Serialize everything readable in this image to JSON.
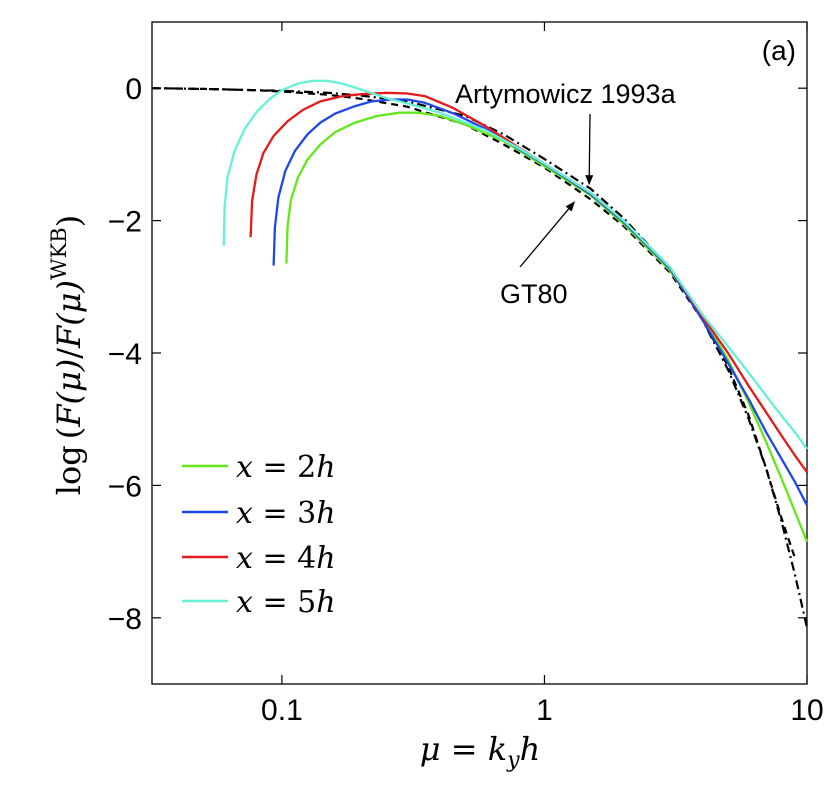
{
  "chart_data": {
    "type": "line",
    "panel_label": "(a)",
    "xscale": "log",
    "xlim": [
      0.032,
      10
    ],
    "ylim": [
      -9,
      1
    ],
    "xlabel": "μ = k_y h",
    "ylabel": "log (F(μ)/F(μ)^WKB)",
    "xlabel_parts": {
      "mu": "μ",
      "eq": " = ",
      "k": "k",
      "sub": "y",
      "h": "h"
    },
    "ylabel_parts": {
      "log": "log",
      "open": "(",
      "F1": "F",
      "mu1": "(μ)",
      "slash": "/",
      "F2": "F",
      "mu2": "(μ)",
      "sup": "WKB",
      "close": ")"
    },
    "x_ticks": [
      {
        "value": 0.1,
        "label": "0.1"
      },
      {
        "value": 1,
        "label": "1"
      },
      {
        "value": 10,
        "label": "10"
      }
    ],
    "y_ticks": [
      {
        "value": 0,
        "label": "0"
      },
      {
        "value": -2,
        "label": "−2"
      },
      {
        "value": -4,
        "label": "−4"
      },
      {
        "value": -6,
        "label": "−6"
      },
      {
        "value": -8,
        "label": "−8"
      }
    ],
    "legend_position": "lower-left",
    "series": [
      {
        "name": "x = 2h",
        "math": {
          "x": "x",
          "eq": " = 2",
          "h": "h"
        },
        "color": "#66e61a",
        "style": "solid",
        "points": [
          [
            0.104,
            -2.65
          ],
          [
            0.105,
            -2.1
          ],
          [
            0.108,
            -1.7
          ],
          [
            0.115,
            -1.35
          ],
          [
            0.125,
            -1.08
          ],
          [
            0.14,
            -0.85
          ],
          [
            0.16,
            -0.66
          ],
          [
            0.19,
            -0.52
          ],
          [
            0.23,
            -0.42
          ],
          [
            0.28,
            -0.37
          ],
          [
            0.33,
            -0.37
          ],
          [
            0.4,
            -0.42
          ],
          [
            0.5,
            -0.55
          ],
          [
            0.7,
            -0.8
          ],
          [
            1.0,
            -1.18
          ],
          [
            1.5,
            -1.62
          ],
          [
            2.0,
            -2.05
          ],
          [
            3.0,
            -2.75
          ],
          [
            4.0,
            -3.45
          ],
          [
            5.0,
            -4.1
          ],
          [
            6.0,
            -4.75
          ],
          [
            7.0,
            -5.35
          ],
          [
            8.0,
            -5.9
          ],
          [
            9.0,
            -6.4
          ],
          [
            10.0,
            -6.85
          ]
        ]
      },
      {
        "name": "x = 3h",
        "math": {
          "x": "x",
          "eq": " = 3",
          "h": "h"
        },
        "color": "#2148e6",
        "style": "solid",
        "points": [
          [
            0.093,
            -2.68
          ],
          [
            0.094,
            -2.1
          ],
          [
            0.097,
            -1.65
          ],
          [
            0.103,
            -1.25
          ],
          [
            0.112,
            -0.95
          ],
          [
            0.125,
            -0.7
          ],
          [
            0.14,
            -0.52
          ],
          [
            0.16,
            -0.38
          ],
          [
            0.19,
            -0.27
          ],
          [
            0.22,
            -0.2
          ],
          [
            0.26,
            -0.17
          ],
          [
            0.3,
            -0.17
          ],
          [
            0.35,
            -0.22
          ],
          [
            0.45,
            -0.38
          ],
          [
            0.6,
            -0.62
          ],
          [
            0.8,
            -0.92
          ],
          [
            1.0,
            -1.15
          ],
          [
            1.5,
            -1.6
          ],
          [
            2.0,
            -2.02
          ],
          [
            3.0,
            -2.72
          ],
          [
            4.0,
            -3.5
          ],
          [
            5.0,
            -4.15
          ],
          [
            6.0,
            -4.7
          ],
          [
            7.0,
            -5.2
          ],
          [
            8.0,
            -5.6
          ],
          [
            9.0,
            -5.95
          ],
          [
            10.0,
            -6.3
          ]
        ]
      },
      {
        "name": "x = 4h",
        "math": {
          "x": "x",
          "eq": " = 4",
          "h": "h"
        },
        "color": "#e61a1a",
        "style": "solid",
        "points": [
          [
            0.076,
            -2.25
          ],
          [
            0.077,
            -1.7
          ],
          [
            0.08,
            -1.3
          ],
          [
            0.085,
            -0.98
          ],
          [
            0.093,
            -0.72
          ],
          [
            0.105,
            -0.5
          ],
          [
            0.12,
            -0.33
          ],
          [
            0.14,
            -0.2
          ],
          [
            0.17,
            -0.12
          ],
          [
            0.2,
            -0.09
          ],
          [
            0.25,
            -0.07
          ],
          [
            0.3,
            -0.08
          ],
          [
            0.35,
            -0.12
          ],
          [
            0.45,
            -0.3
          ],
          [
            0.6,
            -0.58
          ],
          [
            0.8,
            -0.9
          ],
          [
            1.0,
            -1.14
          ],
          [
            1.5,
            -1.58
          ],
          [
            2.0,
            -2.0
          ],
          [
            3.0,
            -2.7
          ],
          [
            4.0,
            -3.45
          ],
          [
            5.0,
            -4.0
          ],
          [
            6.0,
            -4.5
          ],
          [
            7.0,
            -4.9
          ],
          [
            8.0,
            -5.25
          ],
          [
            9.0,
            -5.55
          ],
          [
            10.0,
            -5.8
          ]
        ]
      },
      {
        "name": "x = 5h",
        "math": {
          "x": "x",
          "eq": " = 5",
          "h": "h"
        },
        "color": "#66f0d6",
        "style": "solid",
        "points": [
          [
            0.06,
            -2.38
          ],
          [
            0.0605,
            -1.8
          ],
          [
            0.062,
            -1.35
          ],
          [
            0.066,
            -0.95
          ],
          [
            0.072,
            -0.62
          ],
          [
            0.08,
            -0.36
          ],
          [
            0.09,
            -0.16
          ],
          [
            0.1,
            -0.03
          ],
          [
            0.115,
            0.07
          ],
          [
            0.13,
            0.11
          ],
          [
            0.15,
            0.11
          ],
          [
            0.17,
            0.07
          ],
          [
            0.2,
            -0.02
          ],
          [
            0.25,
            -0.15
          ],
          [
            0.3,
            -0.23
          ],
          [
            0.4,
            -0.37
          ],
          [
            0.6,
            -0.64
          ],
          [
            0.8,
            -0.91
          ],
          [
            1.0,
            -1.14
          ],
          [
            1.5,
            -1.58
          ],
          [
            2.0,
            -2.0
          ],
          [
            3.0,
            -2.7
          ],
          [
            4.0,
            -3.42
          ],
          [
            5.0,
            -3.9
          ],
          [
            6.0,
            -4.3
          ],
          [
            7.0,
            -4.65
          ],
          [
            8.0,
            -4.95
          ],
          [
            9.0,
            -5.2
          ],
          [
            10.0,
            -5.45
          ]
        ]
      }
    ],
    "reference_curves": [
      {
        "name": "Artymowicz 1993a",
        "color": "#000000",
        "style": "dashdot",
        "points": [
          [
            0.032,
            0.0
          ],
          [
            0.05,
            -0.01
          ],
          [
            0.08,
            -0.03
          ],
          [
            0.1,
            -0.04
          ],
          [
            0.15,
            -0.07
          ],
          [
            0.2,
            -0.11
          ],
          [
            0.3,
            -0.2
          ],
          [
            0.5,
            -0.42
          ],
          [
            0.7,
            -0.7
          ],
          [
            1.0,
            -1.07
          ],
          [
            1.5,
            -1.52
          ],
          [
            2.0,
            -1.96
          ],
          [
            3.0,
            -2.72
          ],
          [
            4.0,
            -3.5
          ],
          [
            5.0,
            -4.25
          ],
          [
            6.0,
            -5.0
          ],
          [
            7.0,
            -5.75
          ],
          [
            8.0,
            -6.55
          ],
          [
            9.0,
            -7.35
          ],
          [
            10.0,
            -8.15
          ]
        ]
      },
      {
        "name": "GT80",
        "color": "#000000",
        "style": "dashed",
        "points": [
          [
            0.032,
            0.0
          ],
          [
            0.05,
            -0.01
          ],
          [
            0.08,
            -0.03
          ],
          [
            0.1,
            -0.05
          ],
          [
            0.15,
            -0.1
          ],
          [
            0.2,
            -0.16
          ],
          [
            0.3,
            -0.28
          ],
          [
            0.5,
            -0.55
          ],
          [
            0.7,
            -0.85
          ],
          [
            1.0,
            -1.2
          ],
          [
            1.5,
            -1.68
          ],
          [
            2.0,
            -2.08
          ],
          [
            3.0,
            -2.78
          ],
          [
            4.0,
            -3.5
          ],
          [
            5.0,
            -4.2
          ],
          [
            6.0,
            -4.95
          ],
          [
            7.0,
            -5.75
          ],
          [
            8.0,
            -6.5
          ],
          [
            9.0,
            -7.1
          ]
        ]
      }
    ],
    "annotations": [
      {
        "id": "artymowicz",
        "text": "Artymowicz 1993a",
        "arrow_to": [
          1.48,
          -1.45
        ]
      },
      {
        "id": "gt80",
        "text": "GT80",
        "arrow_to": [
          1.3,
          -1.72
        ]
      }
    ]
  }
}
